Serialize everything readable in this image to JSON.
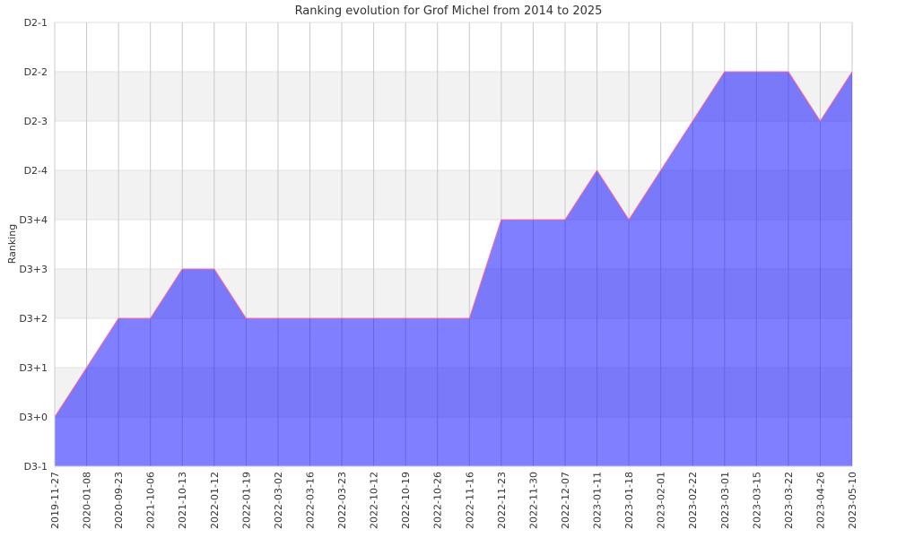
{
  "chart_data": {
    "type": "area",
    "title": "Ranking evolution for Grof Michel from 2014 to 2025",
    "xlabel": "",
    "ylabel": "Ranking",
    "y_categories": [
      "D3-1",
      "D3+0",
      "D3+1",
      "D3+2",
      "D3+3",
      "D3+4",
      "D2-4",
      "D2-3",
      "D2-2",
      "D2-1"
    ],
    "x": [
      "2019-11-27",
      "2020-01-08",
      "2020-09-23",
      "2021-10-06",
      "2021-10-13",
      "2022-01-12",
      "2022-01-19",
      "2022-03-02",
      "2022-03-16",
      "2022-03-23",
      "2022-10-12",
      "2022-10-19",
      "2022-10-26",
      "2022-11-16",
      "2022-11-23",
      "2022-11-30",
      "2022-12-07",
      "2023-01-11",
      "2023-01-18",
      "2023-02-01",
      "2023-02-22",
      "2023-03-01",
      "2023-03-15",
      "2023-03-22",
      "2023-04-26",
      "2023-05-10"
    ],
    "series": [
      {
        "name": "Ranking",
        "values": [
          "D3+0",
          "D3+1",
          "D3+2",
          "D3+2",
          "D3+3",
          "D3+3",
          "D3+2",
          "D3+2",
          "D3+2",
          "D3+2",
          "D3+2",
          "D3+2",
          "D3+2",
          "D3+2",
          "D3+4",
          "D3+4",
          "D3+4",
          "D2-4",
          "D3+4",
          "D2-4",
          "D2-3",
          "D2-2",
          "D2-2",
          "D2-2",
          "D2-3",
          "D2-2"
        ]
      }
    ],
    "grid": true,
    "fill_color": "#0000ff",
    "line_color": "#ff6699"
  }
}
